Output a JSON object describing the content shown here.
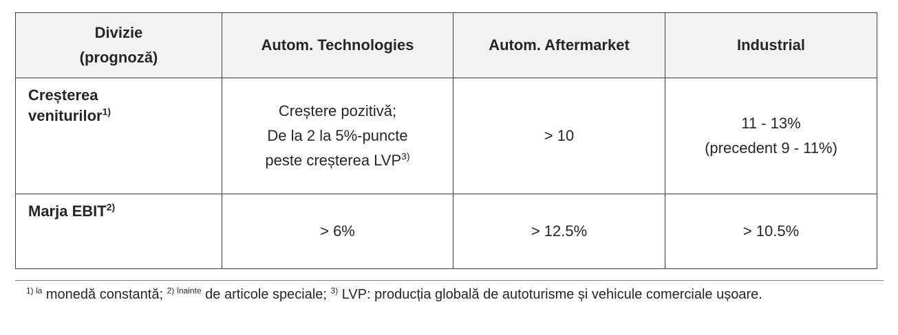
{
  "table": {
    "header": {
      "col0_line1": "Divizie",
      "col0_line2": "(prognoză)",
      "col1": "Autom. Technologies",
      "col2": "Autom. Aftermarket",
      "col3": "Industrial"
    },
    "row_revenue": {
      "label_line1": "Creșterea",
      "label_line2": "veniturilor",
      "label_sup": "1)",
      "tech_line1": "Creștere pozitivă;",
      "tech_line2": "De la 2 la 5%-puncte",
      "tech_line3": "peste creșterea LVP",
      "tech_sup": "3)",
      "aftermarket": "> 10",
      "industrial_line1": "11 - 13%",
      "industrial_line2": "(precedent 9 - 11%)"
    },
    "row_ebit": {
      "label": "Marja EBIT",
      "label_sup": "2)",
      "tech": "> 6%",
      "aftermarket": "> 12.5%",
      "industrial": "> 10.5%"
    }
  },
  "footnotes": {
    "n1_mark": "1) la",
    "n1_text": " monedă constantă; ",
    "n2_mark": "2) înainte",
    "n2_text": " de articole speciale; ",
    "n3_mark": "3)",
    "n3_text": " LVP: producția globală de autoturisme și vehicule comerciale ușoare."
  }
}
